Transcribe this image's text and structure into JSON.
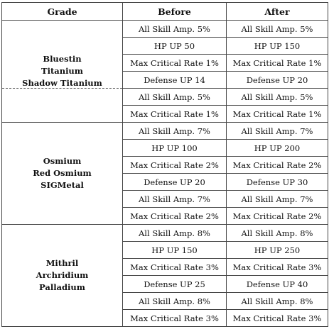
{
  "header": {
    "grade": "Grade",
    "before": "Before",
    "after": "After"
  },
  "groups": [
    {
      "names": [
        "Bluestin",
        "Titanium",
        "Shadow Titanium"
      ],
      "rows": [
        {
          "before": "All Skill Amp. 5%",
          "after": "All Skill Amp. 5%"
        },
        {
          "before": "HP UP 50",
          "after": "HP UP 150"
        },
        {
          "before": "Max Critical Rate 1%",
          "after": "Max Critical Rate 1%"
        },
        {
          "before": "Defense UP 14",
          "after": "Defense UP 20"
        },
        {
          "before": "All Skill Amp. 5%",
          "after": "All Skill Amp. 5%"
        },
        {
          "before": "Max Critical Rate 1%",
          "after": "Max Critical Rate 1%"
        }
      ]
    },
    {
      "names": [
        "Osmium",
        "Red Osmium",
        "SIGMetal"
      ],
      "rows": [
        {
          "before": "All Skill Amp. 7%",
          "after": "All Skill Amp. 7%"
        },
        {
          "before": "HP UP 100",
          "after": "HP UP 200"
        },
        {
          "before": "Max Critical Rate 2%",
          "after": "Max Critical Rate 2%"
        },
        {
          "before": "Defense UP 20",
          "after": "Defense UP 30"
        },
        {
          "before": "All Skill Amp. 7%",
          "after": "All Skill Amp. 7%"
        },
        {
          "before": "Max Critical Rate 2%",
          "after": "Max Critical Rate 2%"
        }
      ]
    },
    {
      "names": [
        "Mithril",
        "Archridium",
        "Palladium"
      ],
      "rows": [
        {
          "before": "All Skill Amp. 8%",
          "after": "All Skill Amp. 8%"
        },
        {
          "before": "HP UP 150",
          "after": "HP UP 250"
        },
        {
          "before": "Max Critical Rate 3%",
          "after": "Max Critical Rate 3%"
        },
        {
          "before": "Defense UP 25",
          "after": "Defense UP 40"
        },
        {
          "before": "All Skill Amp. 8%",
          "after": "All Skill Amp. 8%"
        },
        {
          "before": "Max Critical Rate 3%",
          "after": "Max Critical Rate 3%"
        }
      ]
    }
  ]
}
